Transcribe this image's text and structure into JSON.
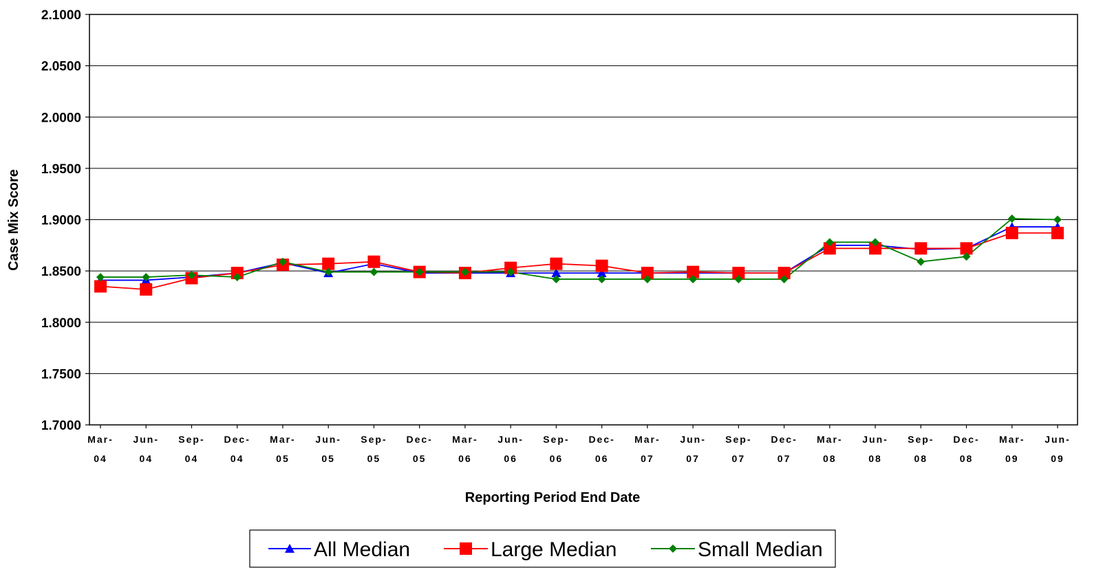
{
  "chart_data": {
    "type": "line",
    "title": "",
    "xlabel": "Reporting Period End Date",
    "ylabel": "Case Mix Score",
    "ylim": [
      1.7,
      2.1
    ],
    "yticks": [
      "1.7000",
      "1.7500",
      "1.8000",
      "1.8500",
      "1.9000",
      "1.9500",
      "2.0000",
      "2.0500",
      "2.1000"
    ],
    "grid": "horizontal",
    "legend_position": "bottom",
    "categories": [
      [
        "Mar-",
        "04"
      ],
      [
        "Jun-",
        "04"
      ],
      [
        "Sep-",
        "04"
      ],
      [
        "Dec-",
        "04"
      ],
      [
        "Mar-",
        "05"
      ],
      [
        "Jun-",
        "05"
      ],
      [
        "Sep-",
        "05"
      ],
      [
        "Dec-",
        "05"
      ],
      [
        "Mar-",
        "06"
      ],
      [
        "Jun-",
        "06"
      ],
      [
        "Sep-",
        "06"
      ],
      [
        "Dec-",
        "06"
      ],
      [
        "Mar-",
        "07"
      ],
      [
        "Jun-",
        "07"
      ],
      [
        "Sep-",
        "07"
      ],
      [
        "Dec-",
        "07"
      ],
      [
        "Mar-",
        "08"
      ],
      [
        "Jun-",
        "08"
      ],
      [
        "Sep-",
        "08"
      ],
      [
        "Dec-",
        "08"
      ],
      [
        "Mar-",
        "09"
      ],
      [
        "Jun-",
        "09"
      ]
    ],
    "series": [
      {
        "name": "All Median",
        "color": "#0000ff",
        "marker": "triangle",
        "values": [
          1.841,
          1.841,
          1.844,
          1.848,
          1.858,
          1.848,
          1.857,
          1.848,
          1.848,
          1.848,
          1.848,
          1.848,
          1.848,
          1.848,
          1.848,
          1.848,
          1.875,
          1.875,
          1.871,
          1.872,
          1.893,
          1.893
        ]
      },
      {
        "name": "Large Median",
        "color": "#ff0000",
        "marker": "square",
        "values": [
          1.835,
          1.832,
          1.843,
          1.848,
          1.856,
          1.857,
          1.859,
          1.849,
          1.848,
          1.853,
          1.857,
          1.855,
          1.848,
          1.849,
          1.848,
          1.848,
          1.872,
          1.872,
          1.872,
          1.872,
          1.887,
          1.887
        ]
      },
      {
        "name": "Small Median",
        "color": "#008000",
        "marker": "diamond",
        "values": [
          1.844,
          1.844,
          1.846,
          1.844,
          1.859,
          1.849,
          1.849,
          1.849,
          1.849,
          1.849,
          1.842,
          1.842,
          1.842,
          1.842,
          1.842,
          1.842,
          1.878,
          1.878,
          1.859,
          1.864,
          1.901,
          1.9
        ]
      }
    ]
  }
}
